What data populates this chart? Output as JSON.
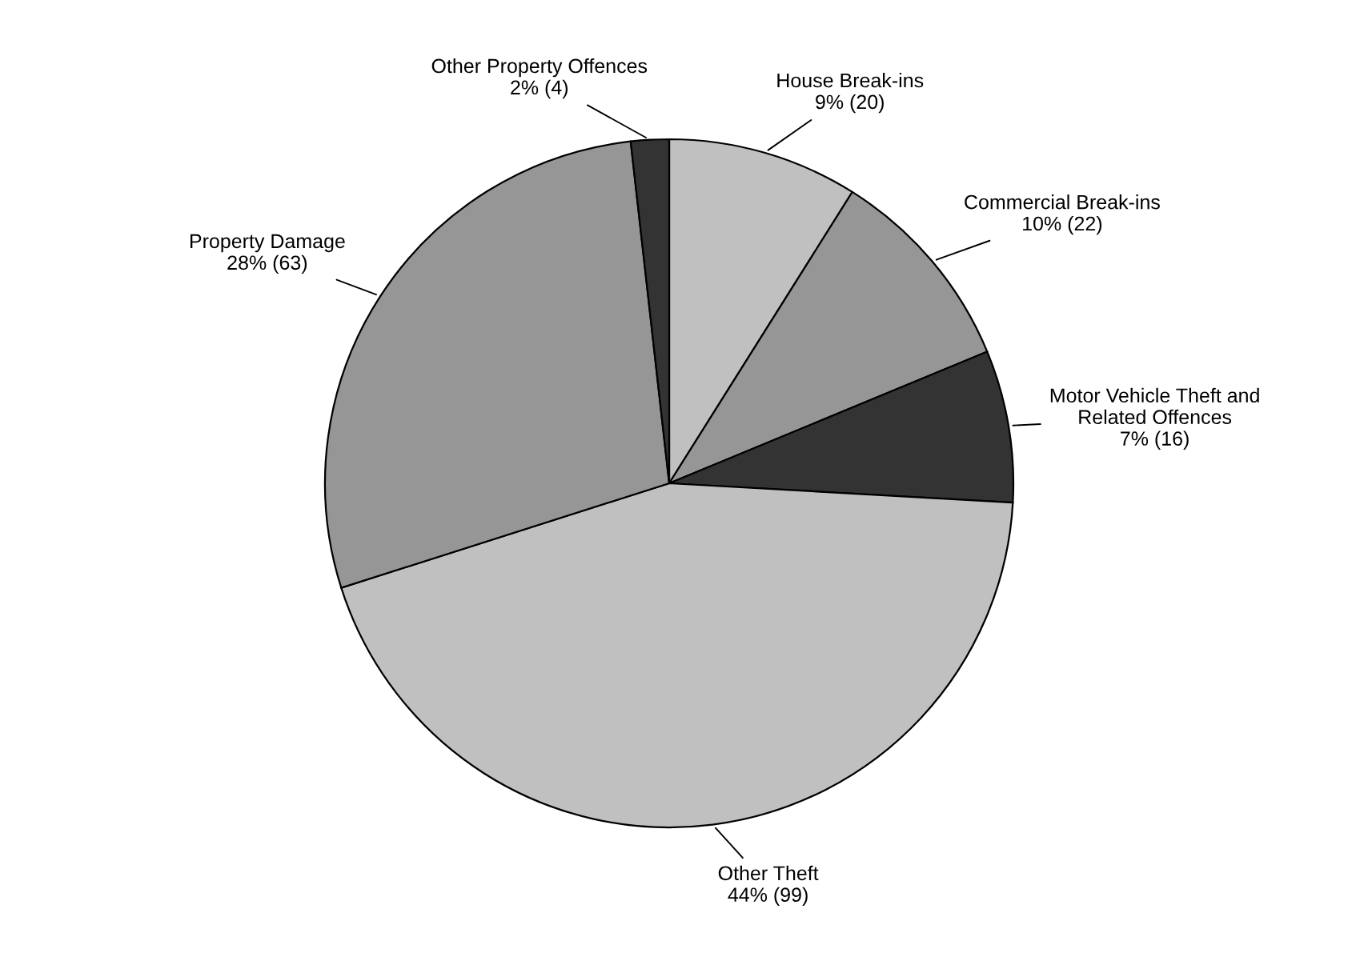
{
  "chart_data": {
    "type": "pie",
    "categories": [
      "House Break-ins",
      "Commercial Break-ins",
      "Motor Vehicle Theft and\nRelated Offences",
      "Other Theft",
      "Property Damage",
      "Other Property Offences"
    ],
    "values": [
      20,
      22,
      16,
      99,
      63,
      4
    ],
    "value_labels": [
      "9% (20)",
      "10% (22)",
      "7% (16)",
      "44% (99)",
      "28% (63)",
      "2% (4)"
    ],
    "colors": [
      "#c0c0c0",
      "#969696",
      "#333333",
      "#c0c0c0",
      "#969696",
      "#333333"
    ]
  }
}
